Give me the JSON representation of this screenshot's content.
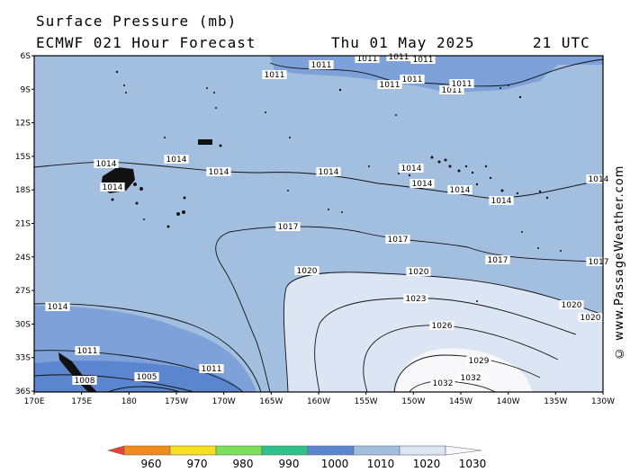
{
  "header": {
    "title": "Surface Pressure (mb)",
    "model_run": "ECMWF 021 Hour Forecast",
    "date": "Thu 01 May 2025",
    "time": "21 UTC"
  },
  "copyright": "© www.PassageWeather.com",
  "axes": {
    "lat_labels": [
      "6S",
      "9S",
      "12S",
      "15S",
      "18S",
      "21S",
      "24S",
      "27S",
      "30S",
      "33S",
      "36S"
    ],
    "lon_labels": [
      "170E",
      "175E",
      "180",
      "175W",
      "170W",
      "165W",
      "160W",
      "155W",
      "150W",
      "145W",
      "140W",
      "135W",
      "130W"
    ]
  },
  "isobar_labels": [
    "1011",
    "1011",
    "1011",
    "1011",
    "1011",
    "1011",
    "1011",
    "1011",
    "1011",
    "1014",
    "1014",
    "1014",
    "1014",
    "1014",
    "1014",
    "1014",
    "1014",
    "1014",
    "1014",
    "1017",
    "1017",
    "1017",
    "1017",
    "1020",
    "1020",
    "1020",
    "1020",
    "1023",
    "1026",
    "1029",
    "1032",
    "1032",
    "1014",
    "1011",
    "1011",
    "1008",
    "1005"
  ],
  "legend": {
    "ticks": [
      "960",
      "970",
      "980",
      "990",
      "1000",
      "1010",
      "1020",
      "1030"
    ],
    "colors": [
      "#e8423a",
      "#f08c1e",
      "#f5df1e",
      "#7ae05a",
      "#2fc28a",
      "#5b86cf",
      "#a3bfe0",
      "#dbe5f3",
      "#f8f8fb"
    ]
  },
  "colors": {
    "band_1008": "#5b86cf",
    "band_1012": "#7da1d8",
    "band_1016": "#a3bfe0",
    "band_1020": "#dbe5f3",
    "band_1030": "#f8f8fb"
  }
}
